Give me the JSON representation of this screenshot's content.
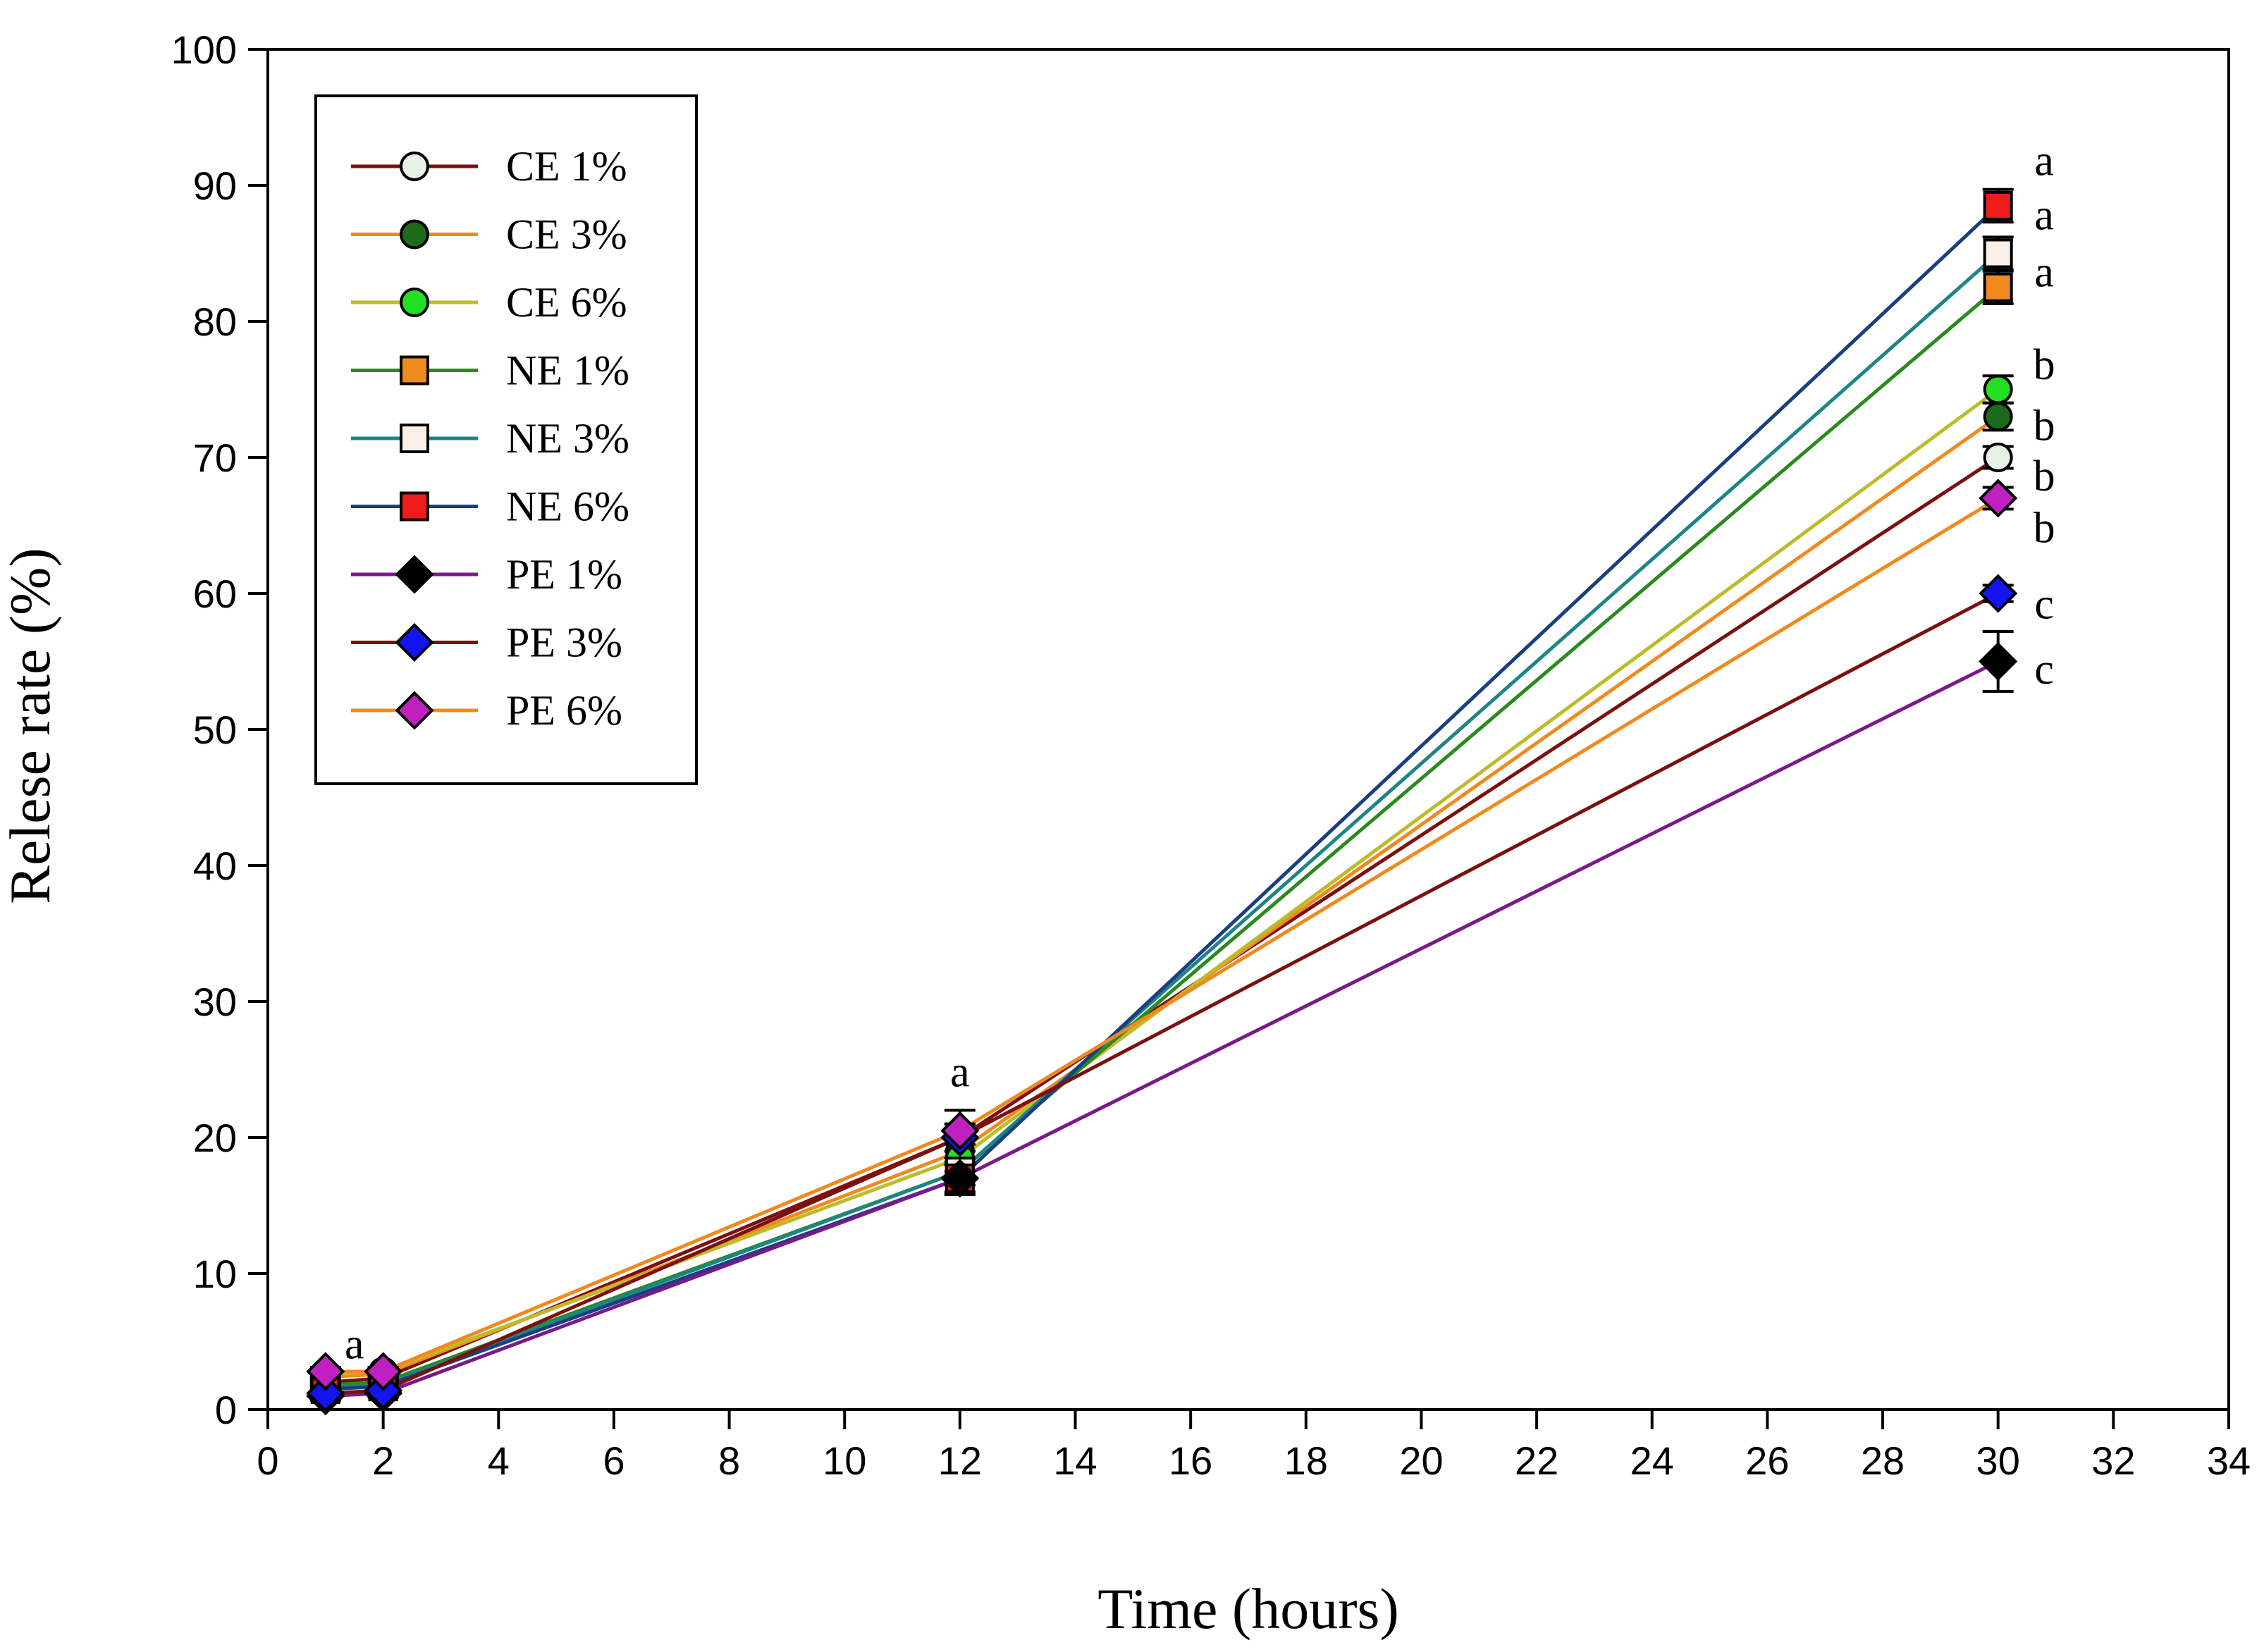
{
  "chart_data": {
    "type": "line",
    "title": "",
    "xlabel": "Time (hours)",
    "ylabel": "Relese rate (%)",
    "xlim": [
      0,
      34
    ],
    "ylim": [
      0,
      100
    ],
    "xticks": [
      0,
      2,
      4,
      6,
      8,
      10,
      12,
      14,
      16,
      18,
      20,
      22,
      24,
      26,
      28,
      30,
      32,
      34
    ],
    "yticks": [
      0,
      10,
      20,
      30,
      40,
      50,
      60,
      70,
      80,
      90,
      100
    ],
    "grid": false,
    "legend_position": "top-left",
    "x": [
      1,
      2,
      12,
      30
    ],
    "series": [
      {
        "name": "CE 1%",
        "line_color": "#7a1010",
        "marker": "circle",
        "marker_color": "#e6f2e6",
        "values": [
          2.0,
          2.3,
          20.0,
          70.0
        ],
        "errors": [
          0.3,
          0.3,
          1.0,
          0.8
        ]
      },
      {
        "name": "CE 3%",
        "line_color": "#f08a1e",
        "marker": "circle",
        "marker_color": "#1d6a1d",
        "values": [
          2.4,
          2.6,
          19.0,
          73.0
        ],
        "errors": [
          0.3,
          0.3,
          1.0,
          1.0
        ]
      },
      {
        "name": "CE 6%",
        "line_color": "#bcbc2a",
        "marker": "circle",
        "marker_color": "#22e022",
        "values": [
          2.6,
          2.8,
          18.5,
          75.0
        ],
        "errors": [
          0.3,
          0.3,
          1.0,
          1.0
        ]
      },
      {
        "name": "NE 1%",
        "line_color": "#2a8a1e",
        "marker": "square",
        "marker_color": "#f08a1e",
        "values": [
          1.8,
          2.0,
          17.5,
          82.5
        ],
        "errors": [
          0.3,
          0.3,
          1.0,
          1.2
        ]
      },
      {
        "name": "NE 3%",
        "line_color": "#1e8585",
        "marker": "square",
        "marker_color": "#fbf0e8",
        "values": [
          1.6,
          1.8,
          17.5,
          85.0
        ],
        "errors": [
          0.3,
          0.3,
          1.0,
          1.2
        ]
      },
      {
        "name": "NE 6%",
        "line_color": "#1a3f80",
        "marker": "square",
        "marker_color": "#ee1c1c",
        "values": [
          1.5,
          1.7,
          17.0,
          88.5
        ],
        "errors": [
          0.3,
          0.3,
          1.0,
          1.2
        ]
      },
      {
        "name": "PE 1%",
        "line_color": "#7a1a8a",
        "marker": "diamond",
        "marker_color": "#000000",
        "values": [
          1.0,
          1.2,
          17.0,
          55.0
        ],
        "errors": [
          0.3,
          0.3,
          1.2,
          2.2
        ]
      },
      {
        "name": "PE 3%",
        "line_color": "#7a1010",
        "marker": "diamond",
        "marker_color": "#1414f0",
        "values": [
          1.2,
          1.4,
          20.0,
          60.0
        ],
        "errors": [
          0.3,
          0.3,
          1.0,
          0.6
        ]
      },
      {
        "name": "PE 6%",
        "line_color": "#f08a1e",
        "marker": "diamond",
        "marker_color": "#c020c0",
        "values": [
          2.8,
          2.8,
          20.5,
          67.0
        ],
        "errors": [
          0.3,
          0.3,
          1.5,
          0.8
        ]
      }
    ],
    "annotations": [
      {
        "text": "a",
        "x": 1.5,
        "y": 4.5
      },
      {
        "text": "a",
        "x": 12,
        "y": 24.5
      },
      {
        "text": "a",
        "x": 30.8,
        "y": 91.5
      },
      {
        "text": "a",
        "x": 30.8,
        "y": 87.5
      },
      {
        "text": "a",
        "x": 30.8,
        "y": 83.3
      },
      {
        "text": "b",
        "x": 30.8,
        "y": 76.5
      },
      {
        "text": "b",
        "x": 30.8,
        "y": 72.0
      },
      {
        "text": "b",
        "x": 30.8,
        "y": 68.3
      },
      {
        "text": "b",
        "x": 30.8,
        "y": 64.5
      },
      {
        "text": "c",
        "x": 30.8,
        "y": 58.9
      },
      {
        "text": "c",
        "x": 30.8,
        "y": 54.1
      }
    ]
  }
}
